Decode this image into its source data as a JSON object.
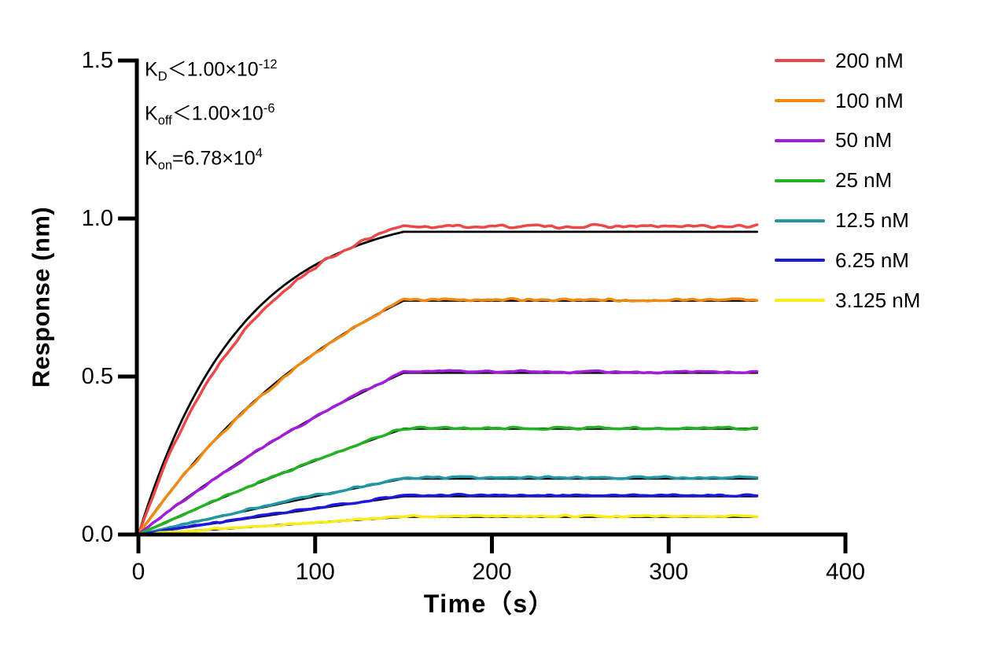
{
  "chart_data": {
    "type": "line",
    "title": "",
    "xlabel": "Time（s）",
    "ylabel": "Response (nm)",
    "xlim": [
      0,
      400
    ],
    "ylim": [
      0,
      1.5
    ],
    "x_ticks": [
      0,
      100,
      200,
      300,
      400
    ],
    "y_ticks": [
      0,
      0.5,
      1.0,
      1.5
    ],
    "y_tick_labels": [
      "0.0",
      "0.5",
      "1.0",
      "1.5"
    ],
    "grid": false,
    "legend_position": "top-right",
    "kinetics_annotation": {
      "lines": [
        {
          "base": "K",
          "sub": "D",
          "rel": "＜",
          "mantissa": "1.00×10",
          "exp": "-12"
        },
        {
          "base": "K",
          "sub": "off",
          "rel": "＜",
          "mantissa": "1.00×10",
          "exp": "-6"
        },
        {
          "base": "K",
          "sub": "on",
          "rel": "=",
          "mantissa": "6.78×10",
          "exp": "4"
        }
      ]
    },
    "association_end_s": 150,
    "trace_end_s": 350,
    "fit_color": "#000000",
    "series": [
      {
        "label": "200 nM",
        "color": "#EB4949",
        "plateau_nm": 0.975,
        "k_obs": 0.015,
        "fit_plateau_nm": 0.958,
        "fit_k_obs": 0.0175,
        "noise_nm": 0.007
      },
      {
        "label": "100 nM",
        "color": "#F08A12",
        "plateau_nm": 0.742,
        "k_obs": 0.0069,
        "fit_plateau_nm": 0.74,
        "fit_k_obs": 0.0072,
        "noise_nm": 0.006
      },
      {
        "label": "50 nM",
        "color": "#A31CDB",
        "plateau_nm": 0.515,
        "k_obs": 0.0035,
        "fit_plateau_nm": 0.512,
        "fit_k_obs": 0.0037,
        "noise_nm": 0.005
      },
      {
        "label": "25 nM",
        "color": "#23B223",
        "plateau_nm": 0.337,
        "k_obs": 0.0018,
        "fit_plateau_nm": 0.335,
        "fit_k_obs": 0.0019,
        "noise_nm": 0.005
      },
      {
        "label": "12.5 nM",
        "color": "#1F97A4",
        "plateau_nm": 0.18,
        "k_obs": 0.0009,
        "fit_plateau_nm": 0.177,
        "fit_k_obs": 0.00095,
        "noise_nm": 0.005
      },
      {
        "label": "6.25 nM",
        "color": "#1C18E0",
        "plateau_nm": 0.124,
        "k_obs": 0.00045,
        "fit_plateau_nm": 0.121,
        "fit_k_obs": 0.00048,
        "noise_nm": 0.004
      },
      {
        "label": "3.125 nM",
        "color": "#F8EC1C",
        "plateau_nm": 0.058,
        "k_obs": 0.00022,
        "fit_plateau_nm": 0.056,
        "fit_k_obs": 0.00024,
        "noise_nm": 0.004
      }
    ]
  }
}
